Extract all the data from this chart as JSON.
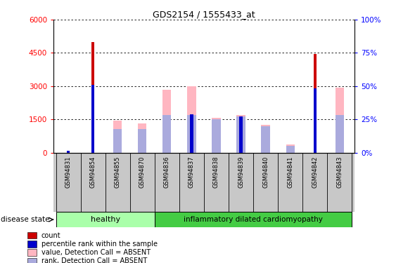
{
  "title": "GDS2154 / 1555433_at",
  "samples": [
    "GSM94831",
    "GSM94854",
    "GSM94855",
    "GSM94870",
    "GSM94836",
    "GSM94837",
    "GSM94838",
    "GSM94839",
    "GSM94840",
    "GSM94841",
    "GSM94842",
    "GSM94843"
  ],
  "count_values": [
    80,
    5000,
    0,
    0,
    0,
    0,
    0,
    0,
    0,
    0,
    4450,
    0
  ],
  "percentile_rank_values": [
    80,
    3050,
    0,
    0,
    0,
    1720,
    0,
    1620,
    0,
    0,
    2900,
    0
  ],
  "absent_value_values": [
    0,
    0,
    1450,
    1300,
    2850,
    3000,
    1560,
    1700,
    1250,
    350,
    0,
    2920
  ],
  "absent_rank_values": [
    0,
    0,
    1050,
    1050,
    1700,
    1700,
    1500,
    1620,
    1200,
    300,
    0,
    1700
  ],
  "ylim_left": [
    0,
    6000
  ],
  "ylim_right": [
    0,
    100
  ],
  "yticks_left": [
    0,
    1500,
    3000,
    4500,
    6000
  ],
  "yticks_right": [
    0,
    25,
    50,
    75,
    100
  ],
  "color_count": "#CC0000",
  "color_percentile": "#0000CC",
  "color_absent_value": "#FFB6C1",
  "color_absent_rank": "#AAAADD",
  "healthy_color": "#AAFFAA",
  "idc_color": "#44CC44",
  "xlab_bg": "#C8C8C8",
  "legend_labels": [
    "count",
    "percentile rank within the sample",
    "value, Detection Call = ABSENT",
    "rank, Detection Call = ABSENT"
  ],
  "legend_colors": [
    "#CC0000",
    "#0000CC",
    "#FFB6C1",
    "#AAAADD"
  ]
}
